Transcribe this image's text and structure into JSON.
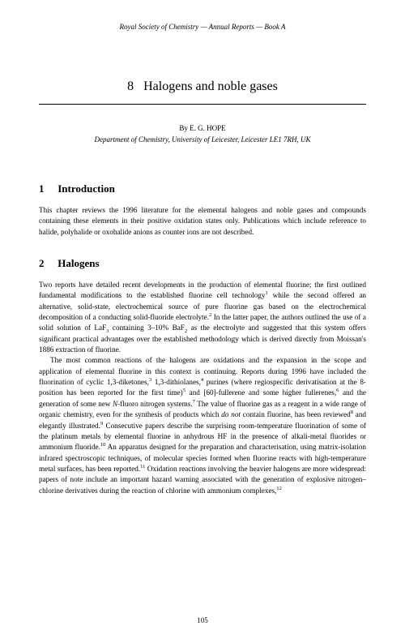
{
  "runningHeader": "Royal Society of Chemistry — Annual Reports — Book A",
  "chapter": {
    "number": "8",
    "title": "Halogens and noble gases"
  },
  "author": {
    "byline": "By E. G. HOPE",
    "affiliation": "Department of Chemistry, University of Leicester, Leicester LE1 7RH, UK"
  },
  "sections": [
    {
      "number": "1",
      "title": "Introduction",
      "paragraphs": [
        "This chapter reviews the 1996 literature for the elemental halogens and noble gases and compounds containing these elements in their positive oxidation states only. Publications which include reference to halide, polyhalide or oxohalide anions as counter ions are not described."
      ]
    },
    {
      "number": "2",
      "title": "Halogens"
    }
  ],
  "pageNumber": "105",
  "typography": {
    "bodyFontSize": 9.2,
    "headingFontSize": 13,
    "titleFontSize": 16,
    "runningHeaderFontSize": 9,
    "lineHeight": 1.45,
    "textColor": "#000000",
    "backgroundColor": "#ffffff"
  }
}
